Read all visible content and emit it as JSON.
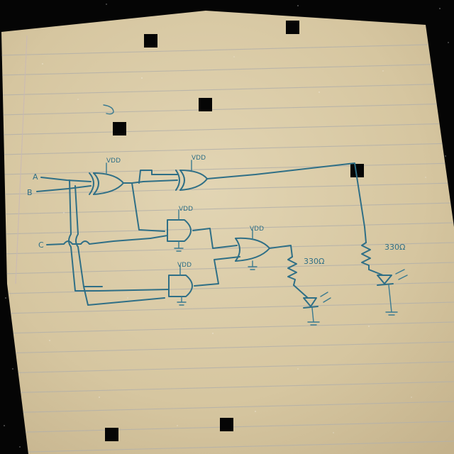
{
  "inputs": {
    "a": "A",
    "b": "B",
    "c": "C"
  },
  "supply": {
    "vdd_xor1": "VDD",
    "vdd_xor2": "VDD",
    "vdd_and_top": "VDD",
    "vdd_and_bottom": "VDD",
    "vdd_or": "VDD"
  },
  "resistors": {
    "r_left": "330Ω",
    "r_right": "330Ω"
  },
  "colors": {
    "paper": "#d8c9a4",
    "ink": "#2f6f86",
    "rule": "#b9b6ad",
    "background": "#050505"
  }
}
